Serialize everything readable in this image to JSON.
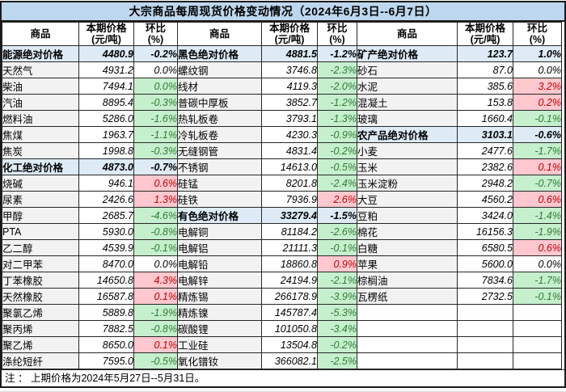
{
  "title": "大宗商品每周现货价格变动情况（2024年6月3日--6月7日）",
  "note": "注 ： 上期价格为2024年5月27日--5月31日。",
  "header": {
    "commodity": "商品",
    "price_line1": "本期价格",
    "price_line2": "(元/吨)",
    "pct_line1": "环比",
    "pct_line2": "(%)"
  },
  "colors": {
    "title_bg": "#BDD7EE",
    "section_bg": "#DEEBF7",
    "name_bg": "#F2F2F2",
    "up_bg": "#FFC7CE",
    "up_text": "#C00000",
    "down_bg": "#C6EFCE",
    "down_text": "#2E7D32",
    "border": "#262626"
  },
  "groups": [
    {
      "rows": [
        {
          "n": "能源绝对价格",
          "p": "4480.9",
          "c": "-0.2%",
          "t": "section"
        },
        {
          "n": "天然气",
          "p": "4931.2",
          "c": "0.0%",
          "t": "flat"
        },
        {
          "n": "柴油",
          "p": "7494.1",
          "c": "0.0%",
          "t": "down"
        },
        {
          "n": "汽油",
          "p": "8895.4",
          "c": "-0.3%",
          "t": "down"
        },
        {
          "n": "燃料油",
          "p": "5286.0",
          "c": "-1.6%",
          "t": "down"
        },
        {
          "n": "焦煤",
          "p": "1963.7",
          "c": "-1.1%",
          "t": "down"
        },
        {
          "n": "焦炭",
          "p": "1998.8",
          "c": "-0.3%",
          "t": "down"
        },
        {
          "n": "化工绝对价格",
          "p": "4873.0",
          "c": "-0.7%",
          "t": "section"
        },
        {
          "n": "烧碱",
          "p": "946.1",
          "c": "0.6%",
          "t": "up"
        },
        {
          "n": "尿素",
          "p": "2426.6",
          "c": "1.3%",
          "t": "up"
        },
        {
          "n": "甲醇",
          "p": "2685.7",
          "c": "-4.6%",
          "t": "down"
        },
        {
          "n": "PTA",
          "p": "5930.0",
          "c": "-0.8%",
          "t": "down"
        },
        {
          "n": "乙二醇",
          "p": "4539.9",
          "c": "-0.1%",
          "t": "down"
        },
        {
          "n": "对二甲苯",
          "p": "8470.0",
          "c": "0.0%",
          "t": "flat"
        },
        {
          "n": "丁苯橡胶",
          "p": "14650.8",
          "c": "4.3%",
          "t": "up"
        },
        {
          "n": "天然橡胶",
          "p": "16587.8",
          "c": "0.1%",
          "t": "up"
        },
        {
          "n": "聚氯乙烯",
          "p": "5889.8",
          "c": "-1.9%",
          "t": "down"
        },
        {
          "n": "聚丙烯",
          "p": "7882.5",
          "c": "-0.8%",
          "t": "down"
        },
        {
          "n": "聚乙烯",
          "p": "8650.0",
          "c": "0.1%",
          "t": "up"
        },
        {
          "n": "涤纶短纤",
          "p": "7595.0",
          "c": "-0.5%",
          "t": "down"
        }
      ]
    },
    {
      "rows": [
        {
          "n": "黑色绝对价格",
          "p": "4881.5",
          "c": "-1.2%",
          "t": "section"
        },
        {
          "n": "螺纹钢",
          "p": "3746.8",
          "c": "-2.3%",
          "t": "down"
        },
        {
          "n": "线材",
          "p": "4119.3",
          "c": "-2.0%",
          "t": "down"
        },
        {
          "n": "普碳中厚板",
          "p": "3852.7",
          "c": "-1.2%",
          "t": "down"
        },
        {
          "n": "热轧板卷",
          "p": "3793.1",
          "c": "-1.3%",
          "t": "down"
        },
        {
          "n": "冷轧板卷",
          "p": "4230.3",
          "c": "-0.9%",
          "t": "down"
        },
        {
          "n": "无缝钢管",
          "p": "4831.4",
          "c": "-0.2%",
          "t": "down"
        },
        {
          "n": "不锈钢",
          "p": "14613.0",
          "c": "-0.5%",
          "t": "down"
        },
        {
          "n": "硅锰",
          "p": "8201.8",
          "c": "-2.4%",
          "t": "down"
        },
        {
          "n": "硅铁",
          "p": "7936.9",
          "c": "2.6%",
          "t": "up"
        },
        {
          "n": "有色绝对价格",
          "p": "33279.4",
          "c": "-1.5%",
          "t": "section"
        },
        {
          "n": "电解铜",
          "p": "81184.2",
          "c": "-2.6%",
          "t": "down"
        },
        {
          "n": "电解铝",
          "p": "21111.3",
          "c": "-0.1%",
          "t": "down"
        },
        {
          "n": "电解铅",
          "p": "18860.8",
          "c": "0.9%",
          "t": "up"
        },
        {
          "n": "电解锌",
          "p": "24194.9",
          "c": "-2.1%",
          "t": "down"
        },
        {
          "n": "精炼锡",
          "p": "266178.9",
          "c": "-3.9%",
          "t": "down"
        },
        {
          "n": "精炼镍",
          "p": "145787.4",
          "c": "-5.3%",
          "t": "down"
        },
        {
          "n": "碳酸锂",
          "p": "101050.8",
          "c": "-3.4%",
          "t": "down"
        },
        {
          "n": "工业硅",
          "p": "13504.8",
          "c": "-0.2%",
          "t": "down"
        },
        {
          "n": "氧化镨钕",
          "p": "366082.1",
          "c": "-2.5%",
          "t": "down"
        }
      ]
    },
    {
      "rows": [
        {
          "n": "矿产绝对价格",
          "p": "123.7",
          "c": "1.0%",
          "t": "section"
        },
        {
          "n": "砂石",
          "p": "87.0",
          "c": "0.0%",
          "t": "flat"
        },
        {
          "n": "水泥",
          "p": "385.6",
          "c": "3.2%",
          "t": "up"
        },
        {
          "n": "混凝土",
          "p": "153.8",
          "c": "0.2%",
          "t": "up"
        },
        {
          "n": "玻璃",
          "p": "1660.4",
          "c": "-0.1%",
          "t": "down"
        },
        {
          "n": "农产品绝对价格",
          "p": "3103.1",
          "c": "-0.6%",
          "t": "section"
        },
        {
          "n": "小麦",
          "p": "2477.6",
          "c": "-1.7%",
          "t": "down"
        },
        {
          "n": "玉米",
          "p": "2382.6",
          "c": "0.1%",
          "t": "up"
        },
        {
          "n": "玉米淀粉",
          "p": "2948.2",
          "c": "-0.7%",
          "t": "down"
        },
        {
          "n": "大豆",
          "p": "4560.2",
          "c": "0.6%",
          "t": "up"
        },
        {
          "n": "豆粕",
          "p": "3424.0",
          "c": "-1.4%",
          "t": "down"
        },
        {
          "n": "棉花",
          "p": "16156.3",
          "c": "-1.9%",
          "t": "down"
        },
        {
          "n": "白糖",
          "p": "6580.5",
          "c": "0.6%",
          "t": "up"
        },
        {
          "n": "苹果",
          "p": "5600.0",
          "c": "0.0%",
          "t": "flat"
        },
        {
          "n": "棕榈油",
          "p": "7834.6",
          "c": "-1.7%",
          "t": "down"
        },
        {
          "n": "瓦楞纸",
          "p": "2732.5",
          "c": "-0.1%",
          "t": "down"
        },
        {
          "n": "",
          "p": "",
          "c": "",
          "t": "empty"
        },
        {
          "n": "",
          "p": "",
          "c": "",
          "t": "empty"
        },
        {
          "n": "",
          "p": "",
          "c": "",
          "t": "empty"
        },
        {
          "n": "",
          "p": "",
          "c": "",
          "t": "empty"
        }
      ]
    }
  ]
}
